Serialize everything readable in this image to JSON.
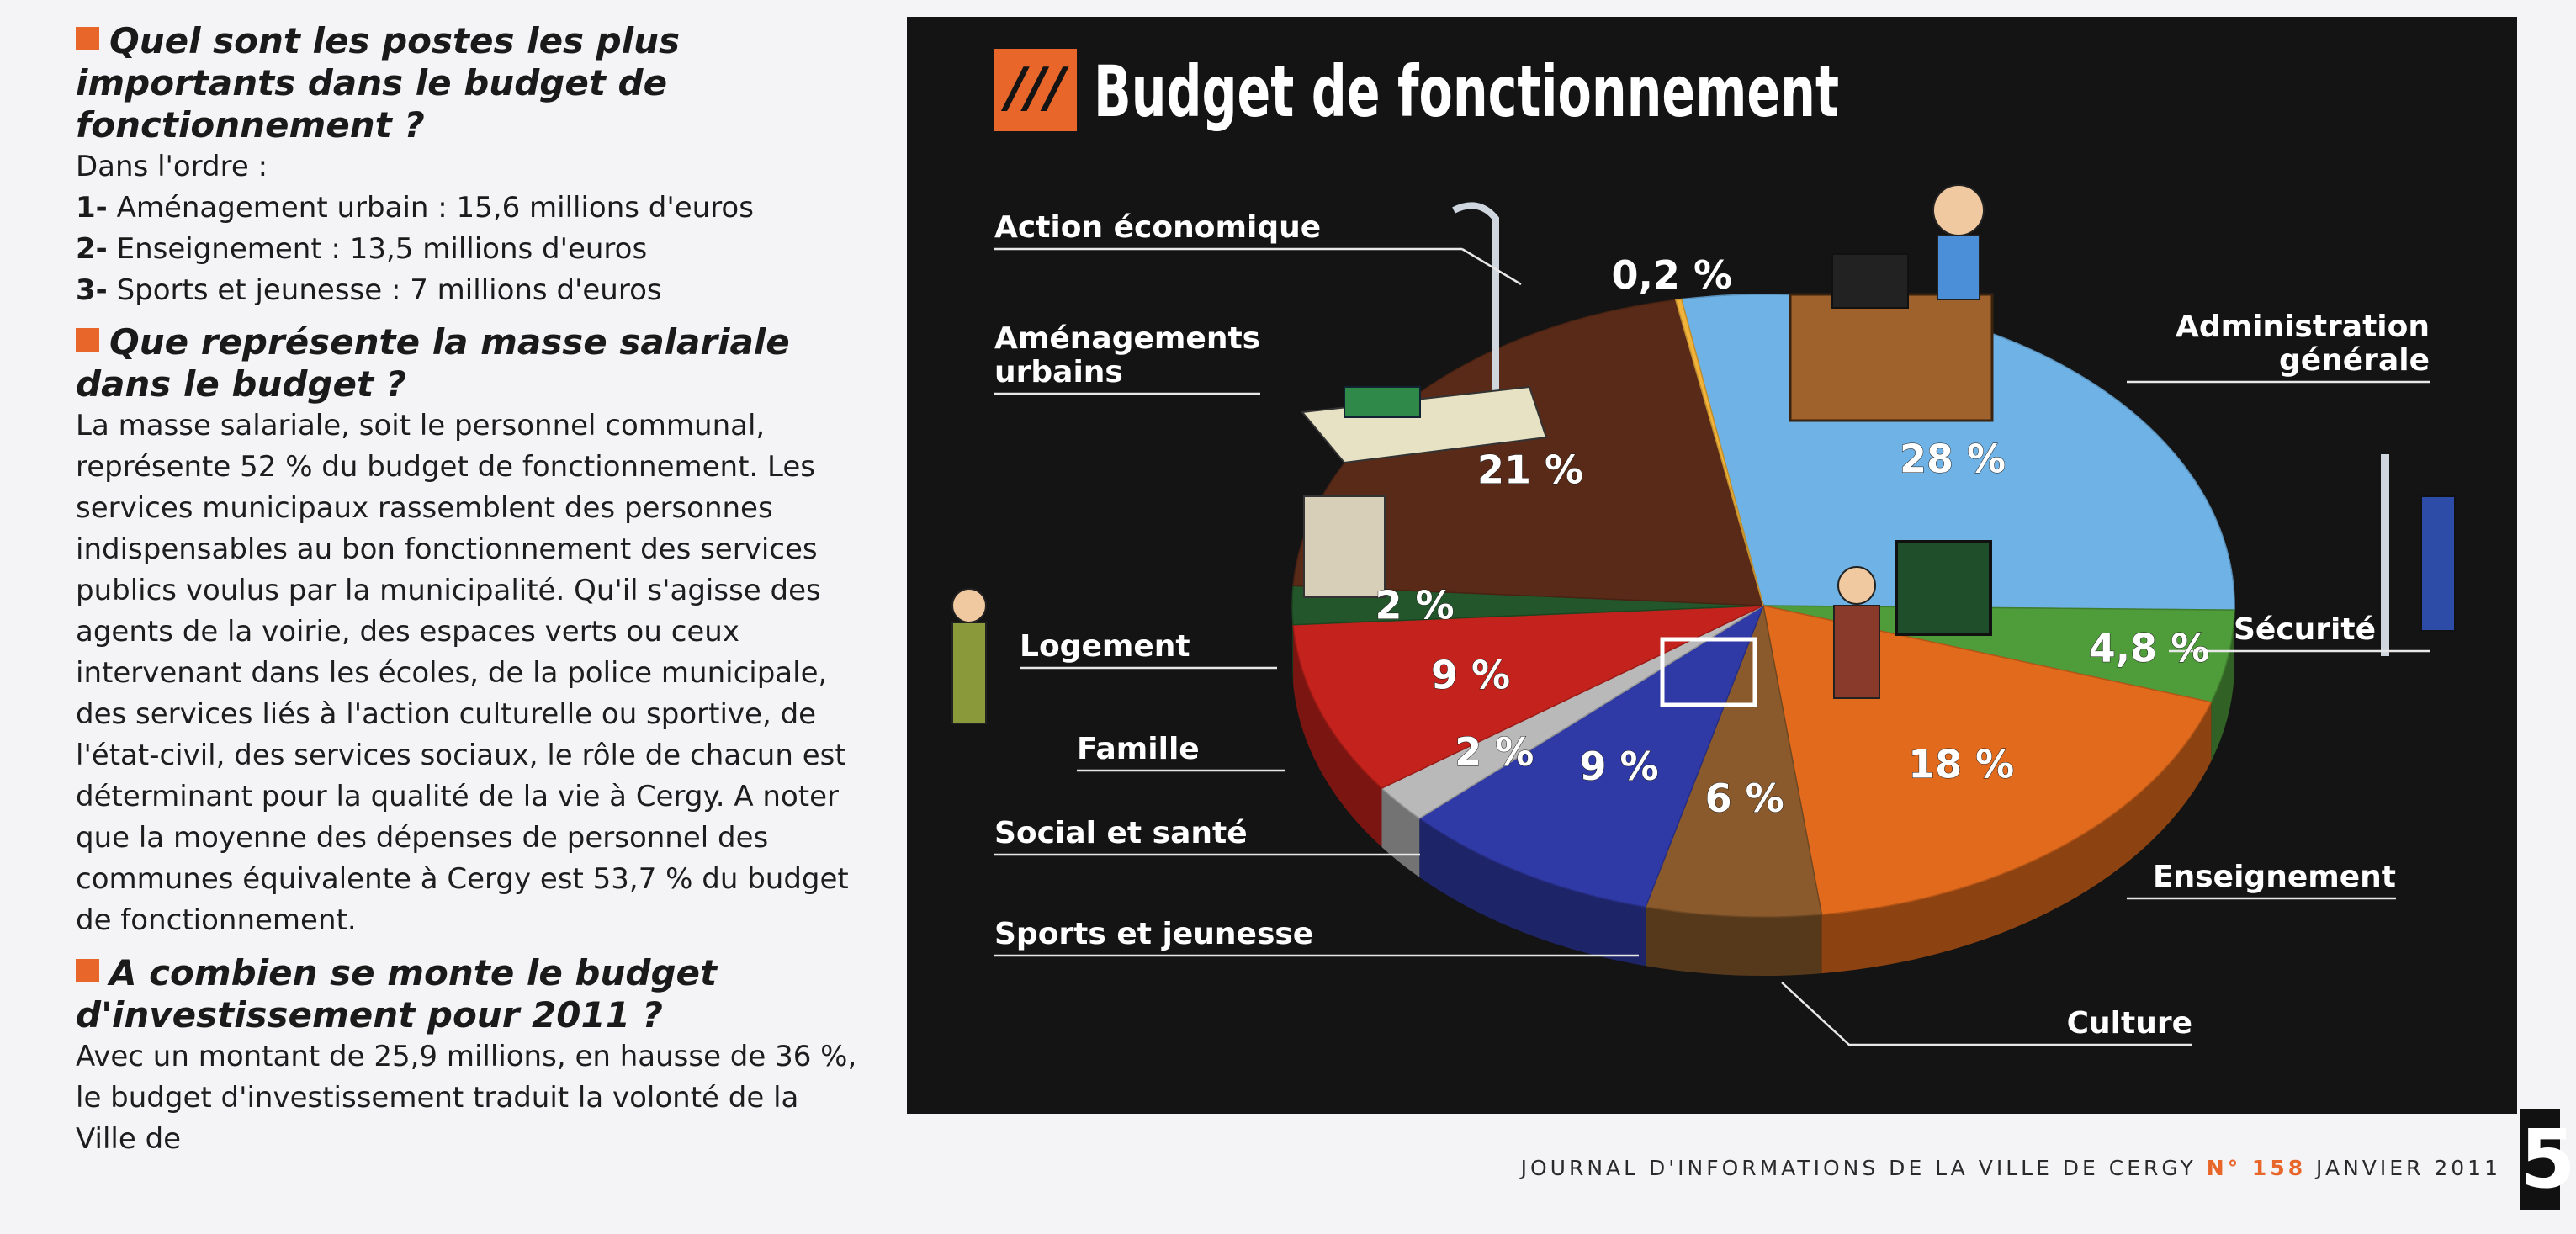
{
  "article": {
    "q1": {
      "heading": "Quel sont les postes les plus importants dans le budget de fonctionnement ?",
      "intro": "Dans l'ordre :",
      "items": [
        {
          "num": "1-",
          "text": " Aménagement urbain : 15,6 millions d'euros"
        },
        {
          "num": "2-",
          "text": " Enseignement : 13,5 millions d'euros"
        },
        {
          "num": "3-",
          "text": " Sports et jeunesse : 7 millions d'euros"
        }
      ]
    },
    "q2": {
      "heading": "Que représente la masse salariale dans le budget ?",
      "body": "La masse salariale, soit le personnel communal, représente 52 % du budget de fonctionnement. Les services municipaux rassemblent des personnes indispensables au bon fonctionnement des services publics voulus par la municipalité. Qu'il s'agisse des agents de la voirie, des espaces verts ou ceux intervenant dans les écoles, de la police municipale, des services liés à l'action culturelle ou sportive, de l'état-civil, des services sociaux, le rôle de chacun est déterminant pour la qualité de la vie à Cergy. A noter que la moyenne des dépenses de personnel des communes équivalente à Cergy est 53,7 % du budget de fonctionnement."
    },
    "q3": {
      "heading": "A combien se monte le budget d'investissement pour 2011 ?",
      "body": "Avec un montant de 25,9 millions, en hausse de 36 %, le budget d'investissement traduit la volonté de la Ville de"
    }
  },
  "chart_data": {
    "type": "pie",
    "title": "Budget de fonctionnement",
    "title_marker": "///",
    "unit": "%",
    "slices": [
      {
        "label": "Administration générale",
        "label_lines": [
          "Administration",
          "générale"
        ],
        "value": 28,
        "value_label": "28 %",
        "color": "#6fb3e6"
      },
      {
        "label": "Sécurité",
        "label_lines": [
          "Sécurité"
        ],
        "value": 4.8,
        "value_label": "4,8 %",
        "color": "#4f9c3a"
      },
      {
        "label": "Enseignement",
        "label_lines": [
          "Enseignement"
        ],
        "value": 18,
        "value_label": "18 %",
        "color": "#e26a1c"
      },
      {
        "label": "Culture",
        "label_lines": [
          "Culture"
        ],
        "value": 6,
        "value_label": "6 %",
        "color": "#8a5a2c"
      },
      {
        "label": "Sports et jeunesse",
        "label_lines": [
          "Sports et jeunesse"
        ],
        "value": 9,
        "value_label": "9 %",
        "color": "#2f3aa6"
      },
      {
        "label": "Social et santé",
        "label_lines": [
          "Social et santé"
        ],
        "value": 2,
        "value_label": "2 %",
        "color": "#b9b9b9"
      },
      {
        "label": "Famille",
        "label_lines": [
          "Famille"
        ],
        "value": 9,
        "value_label": "9 %",
        "color": "#c4221c"
      },
      {
        "label": "Logement",
        "label_lines": [
          "Logement"
        ],
        "value": 2,
        "value_label": "2 %",
        "color": "#23562a"
      },
      {
        "label": "Aménagements urbains",
        "label_lines": [
          "Aménagements",
          "urbains"
        ],
        "value": 21,
        "value_label": "21 %",
        "color": "#5a2a18"
      },
      {
        "label": "Action économique",
        "label_lines": [
          "Action économique"
        ],
        "value": 0.2,
        "value_label": "0,2 %",
        "color": "#f2b33a"
      }
    ]
  },
  "footer": {
    "journal": "JOURNAL D'INFORMATIONS DE LA VILLE DE CERGY",
    "issue": "N° 158",
    "date": "JANVIER 2011",
    "page": "5"
  },
  "colors": {
    "accent": "#e9662a",
    "panel_bg": "#141414"
  }
}
